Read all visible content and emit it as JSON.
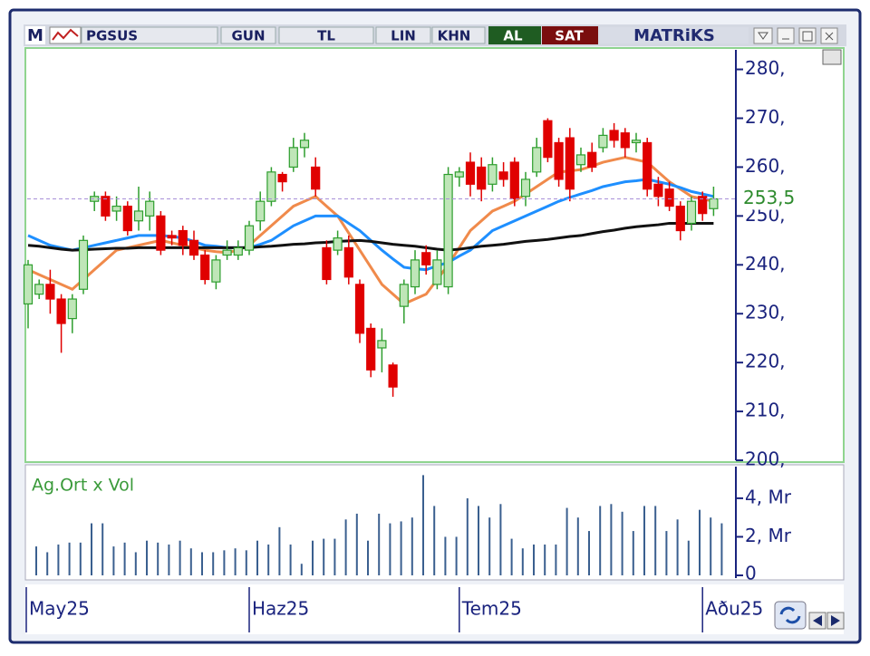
{
  "toolbar": {
    "logo": "M",
    "symbol": "PGSUS",
    "period": "GUN",
    "currency": "TL",
    "scale": "LIN",
    "mode": "KHN",
    "buy": "AL",
    "sell": "SAT",
    "brand": "MATRiKS"
  },
  "chart_data": [
    {
      "type": "candlestick",
      "categories": [
        "May25",
        null,
        null,
        null,
        null,
        null,
        null,
        null,
        null,
        null,
        null,
        null,
        null,
        null,
        null,
        null,
        null,
        null,
        null,
        null,
        "Haz25",
        null,
        null,
        null,
        null,
        null,
        null,
        null,
        null,
        null,
        null,
        null,
        null,
        null,
        null,
        null,
        null,
        null,
        null,
        "Tem25",
        null,
        null,
        null,
        null,
        null,
        null,
        null,
        null,
        null,
        null,
        null,
        null,
        null,
        null,
        null,
        null,
        null,
        null,
        null,
        null,
        null,
        "Aðu25",
        null
      ],
      "open": [
        232,
        234,
        236,
        233,
        229,
        235,
        253,
        254,
        251,
        252,
        249,
        250,
        250,
        246,
        247,
        245,
        242,
        236.5,
        242,
        242,
        243,
        249,
        253,
        258.5,
        260,
        264,
        260,
        243.5,
        243,
        243.5,
        236,
        227,
        223,
        219.5,
        231.5,
        235.5,
        242.5,
        236,
        235.5,
        258,
        261,
        260,
        256.5,
        259,
        261,
        254,
        259,
        269.5,
        265,
        266,
        260.5,
        263,
        264,
        267.5,
        267,
        265,
        265,
        256.5,
        255.5,
        252,
        248.5,
        254,
        251.5
      ],
      "high": [
        241,
        237,
        239,
        234,
        234,
        246,
        255,
        255,
        254,
        253,
        256,
        255,
        251,
        247,
        248,
        247,
        243,
        242,
        245,
        245,
        249,
        255,
        260,
        259,
        266,
        267,
        262,
        245,
        247,
        246,
        237,
        228,
        227,
        220,
        237,
        243,
        244,
        243,
        260,
        260,
        263,
        262,
        262,
        261,
        262,
        259,
        266,
        270,
        266,
        268,
        264,
        265,
        268,
        269,
        268,
        267,
        266,
        258,
        257,
        253,
        254,
        255,
        256
      ],
      "low": [
        227,
        233,
        230,
        222,
        226,
        234,
        251,
        249,
        249,
        246,
        247,
        247,
        242,
        244,
        242,
        241,
        236,
        235,
        241,
        241,
        242,
        247,
        252,
        255,
        259,
        262,
        254,
        236,
        242,
        236,
        224,
        217,
        218,
        213,
        228,
        234,
        238,
        235,
        234,
        256,
        254,
        253,
        255,
        256,
        252,
        252,
        258,
        261,
        256,
        253,
        259,
        259,
        263,
        264,
        262,
        263,
        254,
        252,
        251,
        245,
        247,
        249,
        250
      ],
      "close": [
        240,
        236,
        233,
        228,
        233,
        245,
        254,
        250,
        252,
        247,
        251,
        253,
        243,
        245.5,
        244,
        242,
        237,
        241,
        243,
        243.5,
        248,
        253,
        259,
        257,
        264,
        265.5,
        255.5,
        237,
        245.5,
        237.5,
        226,
        218.5,
        224.5,
        215,
        236,
        241,
        240,
        241,
        258.5,
        259,
        256.5,
        255.5,
        260.5,
        257.5,
        253.5,
        257.5,
        264,
        262,
        257.5,
        255.5,
        262.5,
        260,
        266.5,
        265.5,
        264,
        265.5,
        255.5,
        254,
        252,
        247,
        253,
        250.5,
        253.5
      ],
      "up_color": "#2e9e2e",
      "up_fill": "#bfe6b8",
      "down_color": "#e00000",
      "lines": [
        {
          "color": "#f08a4b",
          "values": [
            239,
            238,
            237,
            236,
            235,
            237,
            239,
            241,
            243,
            243.5,
            244,
            244.5,
            245,
            244.5,
            244,
            243.5,
            243,
            242.7,
            242.5,
            243,
            244,
            246,
            248,
            250,
            252,
            253,
            254,
            252,
            250,
            246.5,
            243,
            239.5,
            236,
            234,
            232,
            233,
            234,
            237,
            240,
            243.5,
            247,
            249,
            251,
            252,
            253,
            254.5,
            256,
            257.5,
            259,
            259.2,
            259.5,
            260.2,
            261,
            261.5,
            262,
            261.5,
            261,
            259,
            257,
            255.5,
            254,
            253.5,
            253
          ]
        },
        {
          "color": "#1e8fff",
          "values": [
            246,
            245,
            244,
            243.5,
            243,
            243.5,
            244,
            244.5,
            245,
            245.5,
            246,
            246,
            246,
            245.8,
            245.5,
            244.8,
            244,
            243.8,
            243.5,
            243.5,
            243.5,
            244.2,
            245,
            246.5,
            248,
            249,
            250,
            250,
            250,
            248.5,
            247,
            245,
            243,
            241.2,
            239.5,
            239.2,
            239,
            239.8,
            240.5,
            241.8,
            243,
            245,
            247,
            248,
            249,
            250,
            251,
            252,
            253,
            253.8,
            254.5,
            255.2,
            256,
            256.5,
            257,
            257.2,
            257.5,
            257,
            256.5,
            255.8,
            255,
            254.5,
            254
          ]
        },
        {
          "color": "#111111",
          "values": [
            244,
            243.8,
            243.5,
            243.2,
            243,
            243.1,
            243.2,
            243.3,
            243.4,
            243.4,
            243.5,
            243.5,
            243.5,
            243.5,
            243.5,
            243.5,
            243.5,
            243.5,
            243.5,
            243.5,
            243.5,
            243.7,
            243.8,
            244,
            244.2,
            244.3,
            244.5,
            244.6,
            244.8,
            244.9,
            245,
            244.8,
            244.5,
            244.2,
            244,
            243.8,
            243.5,
            243.2,
            243,
            243.2,
            243.5,
            243.8,
            244,
            244.2,
            244.5,
            244.8,
            245,
            245.2,
            245.5,
            245.8,
            246,
            246.4,
            246.8,
            247.1,
            247.5,
            247.8,
            248,
            248.2,
            248.5,
            248.5,
            248.5,
            248.5,
            248.5
          ]
        }
      ],
      "last": {
        "value": 253.5,
        "label": "253,5"
      },
      "ylim": [
        200,
        284
      ],
      "yticks": [
        {
          "value": 280,
          "label": "280,"
        },
        {
          "value": 270,
          "label": "270,"
        },
        {
          "value": 260,
          "label": "260,"
        },
        {
          "value": 250,
          "label": "250,"
        },
        {
          "value": 240,
          "label": "240,"
        },
        {
          "value": 230,
          "label": "230,"
        },
        {
          "value": 220,
          "label": "220,"
        },
        {
          "value": 210,
          "label": "210,"
        },
        {
          "value": 200,
          "label": "200,"
        }
      ]
    },
    {
      "type": "bar",
      "title": "Ag.Ort x Vol",
      "color": "#3a5f8f",
      "values": [
        1.5,
        1.2,
        1.6,
        1.7,
        1.7,
        2.7,
        2.7,
        1.5,
        1.7,
        1.2,
        1.8,
        1.7,
        1.6,
        1.8,
        1.4,
        1.2,
        1.2,
        1.3,
        1.4,
        1.3,
        1.8,
        1.6,
        2.5,
        1.6,
        0.6,
        1.8,
        1.9,
        1.9,
        2.9,
        3.2,
        1.8,
        3.2,
        2.7,
        2.8,
        3.0,
        5.2,
        3.6,
        2.0,
        2.0,
        4.0,
        3.6,
        3.0,
        3.7,
        1.9,
        1.4,
        1.6,
        1.6,
        1.6,
        3.5,
        3.0,
        2.3,
        3.6,
        3.7,
        3.3,
        2.3,
        3.6,
        3.6,
        2.3,
        2.9,
        1.8,
        3.4,
        3.0,
        2.7
      ],
      "ylim": [
        0,
        5.5
      ],
      "yticks": [
        {
          "value": 4,
          "label": "4, Mr"
        },
        {
          "value": 2,
          "label": "2, Mr"
        },
        0
      ]
    }
  ]
}
